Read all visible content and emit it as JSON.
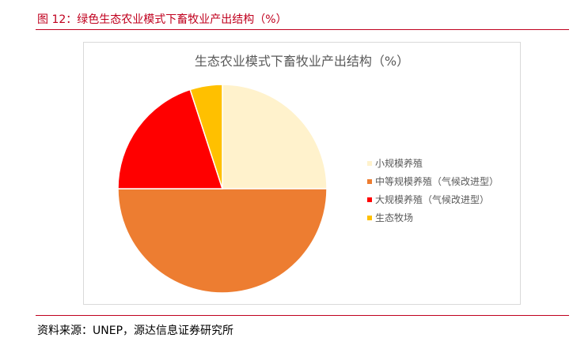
{
  "figure_caption": "图 12：绿色生态农业模式下畜牧业产出结构（%）",
  "source_note": "资料来源：UNEP，源达信息证券研究所",
  "chart_data": {
    "type": "pie",
    "title": "生态农业模式下畜牧业产出结构（%）",
    "legend_position": "right",
    "series": [
      {
        "name": "小规模养殖",
        "value": 25,
        "color": "#fff2cc",
        "stroke": "#ffe699"
      },
      {
        "name": "中等规模养殖（气候改进型）",
        "value": 50,
        "color": "#ed7d31",
        "stroke": "#ffffff"
      },
      {
        "name": "大规模养殖（气候改进型）",
        "value": 20,
        "color": "#ff0000",
        "stroke": "#ffffff"
      },
      {
        "name": "生态牧场",
        "value": 5,
        "color": "#ffc000",
        "stroke": "#ffffff"
      }
    ]
  }
}
